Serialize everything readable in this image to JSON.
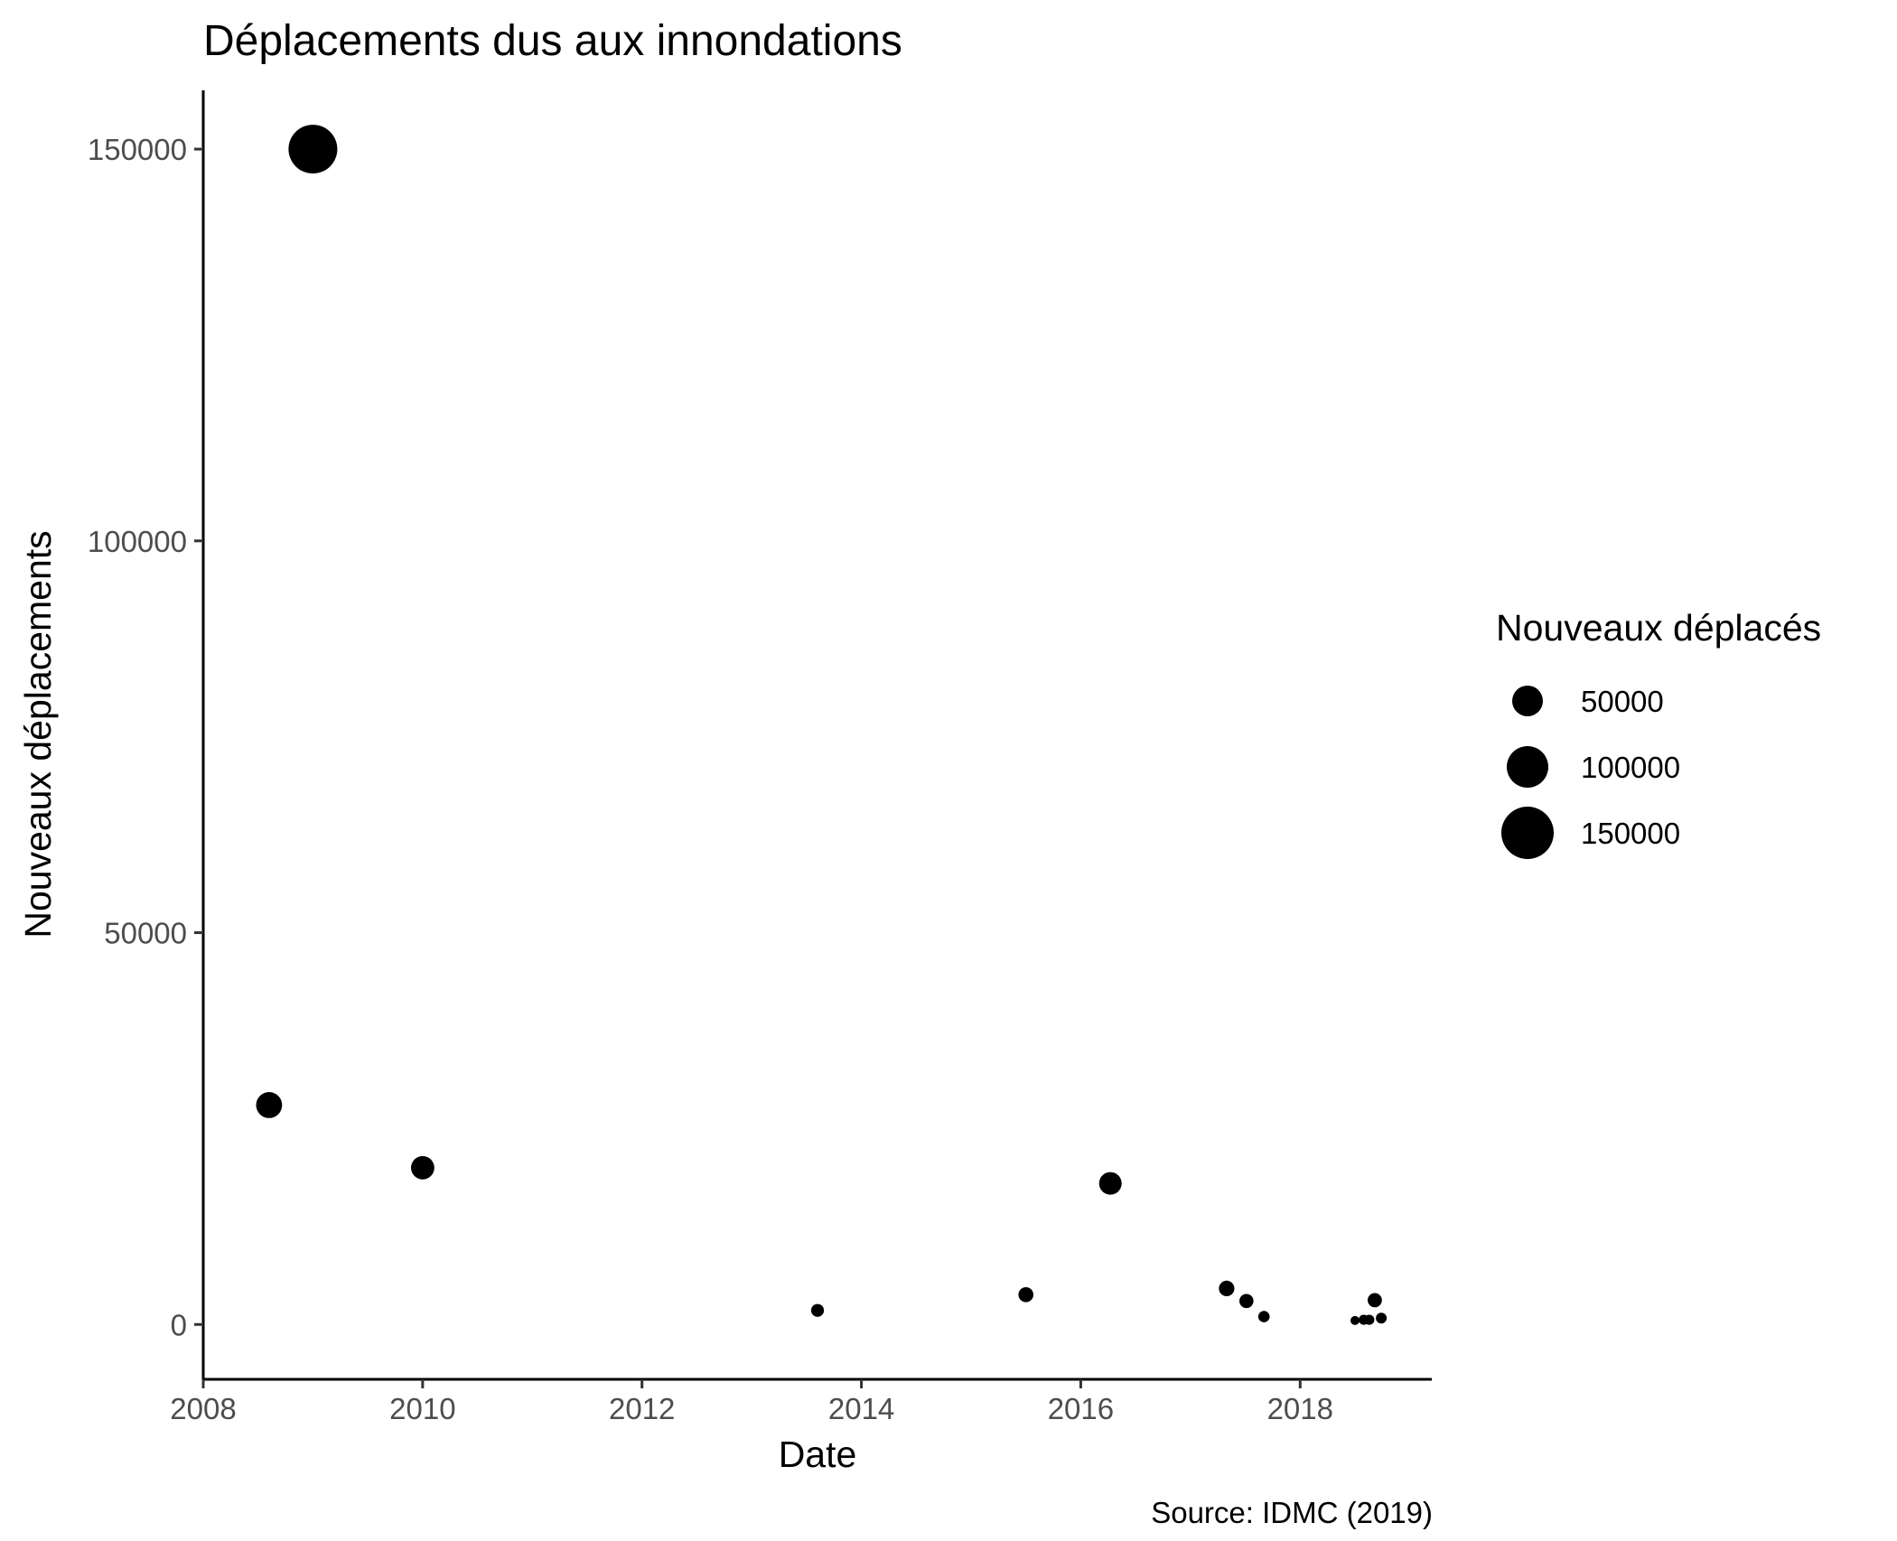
{
  "chart_data": {
    "type": "scatter",
    "title": "Déplacements dus aux innondations",
    "xlabel": "Date",
    "ylabel": "Nouveaux déplacements",
    "caption": "Source: IDMC (2019)",
    "xlim": [
      2008.0,
      2019.2
    ],
    "ylim": [
      -7000,
      157500
    ],
    "x_ticks": [
      2008,
      2010,
      2012,
      2014,
      2016,
      2018
    ],
    "y_ticks": [
      0,
      50000,
      100000,
      150000
    ],
    "grid": false,
    "size_legend": {
      "title": "Nouveaux déplacés",
      "placement": "right",
      "values": [
        50000,
        100000,
        150000
      ]
    },
    "points": [
      {
        "x": 2008.6,
        "y": 28000
      },
      {
        "x": 2009.0,
        "y": 150000
      },
      {
        "x": 2010.0,
        "y": 20000
      },
      {
        "x": 2013.6,
        "y": 1800
      },
      {
        "x": 2015.5,
        "y": 3800
      },
      {
        "x": 2016.27,
        "y": 18000
      },
      {
        "x": 2017.33,
        "y": 4600
      },
      {
        "x": 2017.51,
        "y": 3000
      },
      {
        "x": 2017.67,
        "y": 1000
      },
      {
        "x": 2018.5,
        "y": 500
      },
      {
        "x": 2018.58,
        "y": 600
      },
      {
        "x": 2018.63,
        "y": 600
      },
      {
        "x": 2018.68,
        "y": 3100
      },
      {
        "x": 2018.74,
        "y": 800
      }
    ]
  }
}
